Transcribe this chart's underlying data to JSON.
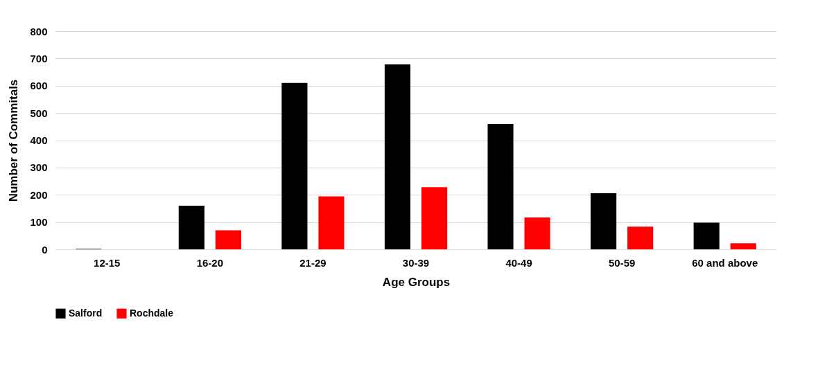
{
  "chart_data": {
    "type": "bar",
    "xlabel": "Age Groups",
    "ylabel": "Number of Commitals",
    "categories": [
      "12-15",
      "16-20",
      "21-29",
      "30-39",
      "40-49",
      "50-59",
      "60 and above"
    ],
    "series": [
      {
        "name": "Salford",
        "color": "#000000",
        "values": [
          2,
          160,
          610,
          678,
          460,
          206,
          98
        ]
      },
      {
        "name": "Rochdale",
        "color": "#ff0000",
        "values": [
          0,
          70,
          194,
          228,
          117,
          83,
          22
        ]
      }
    ],
    "ylim": [
      0,
      800
    ],
    "yticks": [
      0,
      100,
      200,
      300,
      400,
      500,
      600,
      700,
      800
    ],
    "grid": "y",
    "legend": "bottom"
  }
}
